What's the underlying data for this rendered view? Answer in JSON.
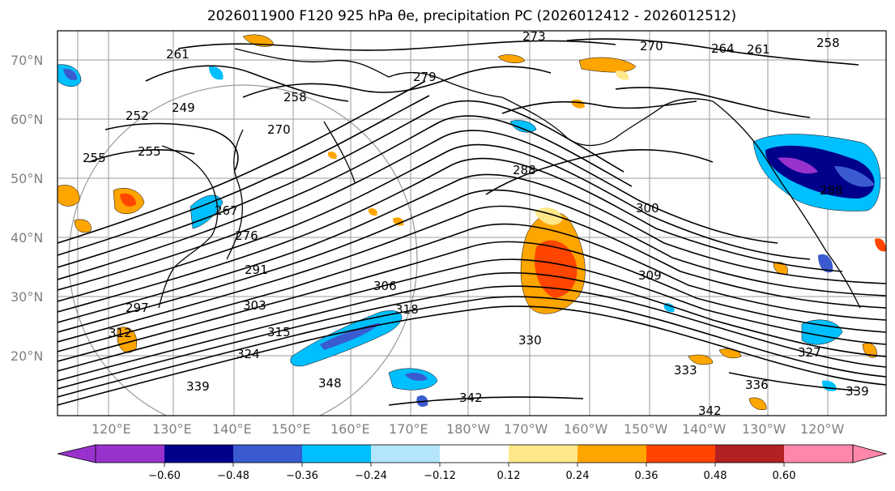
{
  "title": "2026011900 F120 925 hPa θe, precipitation PC (2026012412 - 2026012512)",
  "lat_labels": [
    "70°N",
    "60°N",
    "50°N",
    "40°N",
    "30°N",
    "20°N"
  ],
  "lon_labels": [
    "120°E",
    "130°E",
    "140°E",
    "150°E",
    "160°E",
    "170°E",
    "180°W",
    "170°W",
    "160°W",
    "150°W",
    "140°W",
    "130°W",
    "120°W"
  ],
  "contour_labels": [
    "273",
    "270",
    "264",
    "261",
    "258",
    "261",
    "255",
    "252",
    "249",
    "258",
    "279",
    "288",
    "270",
    "255",
    "267",
    "276",
    "291",
    "300",
    "306",
    "303",
    "297",
    "309",
    "315",
    "318",
    "324",
    "312",
    "330",
    "333",
    "336",
    "339",
    "342",
    "342",
    "348",
    "339",
    "327",
    "288"
  ],
  "colorbar": {
    "colors": [
      "#9932cc",
      "#00008b",
      "#3a5bd0",
      "#00bfff",
      "#b3e5fc",
      "#ffffff",
      "#ffe88a",
      "#ffa500",
      "#ff4500",
      "#b22222",
      "#ff88aa"
    ],
    "tick_labels": [
      "−0.60",
      "−0.48",
      "−0.36",
      "−0.24",
      "−0.12",
      "0.12",
      "0.24",
      "0.36",
      "0.48",
      "0.60"
    ]
  }
}
